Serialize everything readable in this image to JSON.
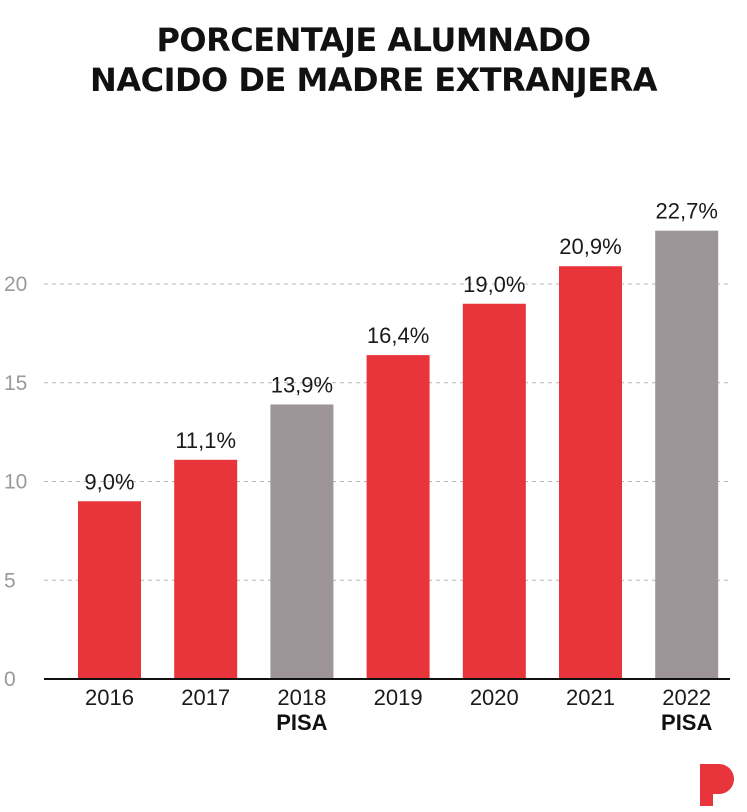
{
  "title_lines": [
    "PORCENTAJE ALUMNADO",
    "NACIDO DE MADRE EXTRANJERA"
  ],
  "logo": {
    "icon": "brand-p-logo-icon",
    "color": "#e8353b"
  },
  "colors": {
    "regular": "#e8353b",
    "pisa": "#9d9597",
    "axis": "#111111",
    "grid": "#b5b5b5"
  },
  "chart_data": {
    "type": "bar",
    "title": "PORCENTAJE ALUMNADO NACIDO DE MADRE EXTRANJERA",
    "xlabel": "",
    "ylabel": "",
    "ylim": [
      0,
      25
    ],
    "yticks": [
      "0",
      "5",
      "10",
      "15",
      "20"
    ],
    "grid": "horizontal dashed",
    "categories": [
      "2016",
      "2017",
      "2018",
      "2019",
      "2020",
      "2021",
      "2022"
    ],
    "sublabels": [
      "",
      "",
      "PISA",
      "",
      "",
      "",
      "PISA"
    ],
    "values": [
      9.0,
      11.1,
      13.9,
      16.4,
      19.0,
      20.9,
      22.7
    ],
    "value_labels": [
      "9,0%",
      "11,1%",
      "13,9%",
      "16,4%",
      "19,0%",
      "20,9%",
      "22,7%"
    ],
    "highlight": [
      false,
      false,
      true,
      false,
      false,
      false,
      true
    ]
  }
}
